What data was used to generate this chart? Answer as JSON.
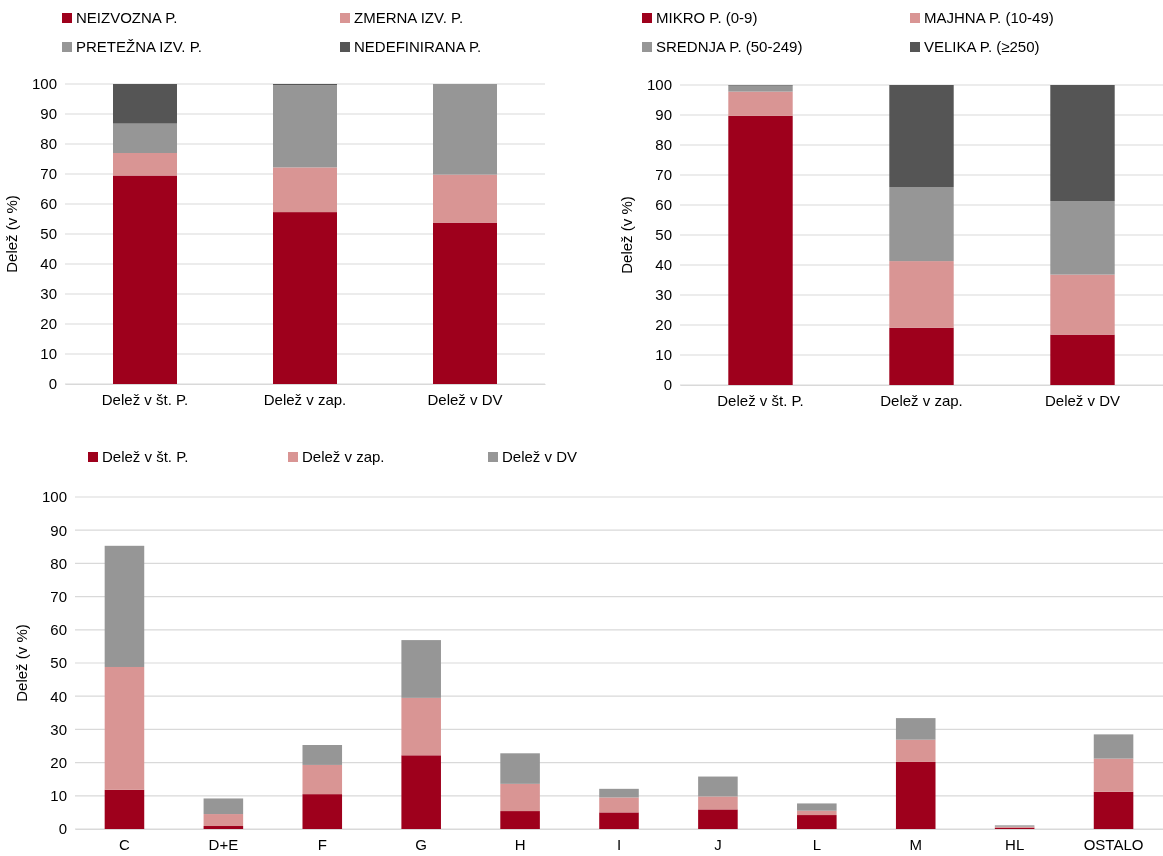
{
  "chart_data": [
    {
      "type": "bar",
      "stacked": true,
      "ylabel": "Delež (v %)",
      "categories": [
        "Delež v št. P.",
        "Delež v zap.",
        "Delež v DV"
      ],
      "ylim": [
        0,
        100
      ],
      "yticks": [
        0,
        10,
        20,
        30,
        40,
        50,
        60,
        70,
        80,
        90,
        100
      ],
      "grid": "y",
      "legend": "top",
      "series": [
        {
          "name": "NEIZVOZNA P.",
          "color": "#9e001c",
          "values": [
            69.5,
            57.3,
            53.8
          ]
        },
        {
          "name": "ZMERNA IZV. P.",
          "color": "#d99594",
          "values": [
            7.5,
            14.9,
            16
          ]
        },
        {
          "name": "PRETEŽNA IZV. P.",
          "color": "#969696",
          "values": [
            9.8,
            27.4,
            30.2
          ]
        },
        {
          "name": "NEDEFINIRANA P.",
          "color": "#555555",
          "values": [
            13.2,
            0.4,
            0
          ]
        }
      ]
    },
    {
      "type": "bar",
      "stacked": true,
      "ylabel": "Delež (v %)",
      "categories": [
        "Delež v št. P.",
        "Delež v zap.",
        "Delež v DV"
      ],
      "ylim": [
        0,
        100
      ],
      "yticks": [
        0,
        10,
        20,
        30,
        40,
        50,
        60,
        70,
        80,
        90,
        100
      ],
      "grid": "y",
      "legend": "top",
      "series": [
        {
          "name": "MIKRO P. (0-9)",
          "color": "#9e001c",
          "values": [
            89.7,
            19.1,
            16.8
          ]
        },
        {
          "name": "MAJHNA P. (10-49)",
          "color": "#d99594",
          "values": [
            8.1,
            22.2,
            20
          ]
        },
        {
          "name": "SREDNJA P. (50-249)",
          "color": "#969696",
          "values": [
            2,
            24.7,
            24.5
          ]
        },
        {
          "name": "VELIKA P. (≥250)",
          "color": "#555555",
          "values": [
            0.2,
            34,
            38.7
          ]
        }
      ]
    },
    {
      "type": "bar",
      "stacked": true,
      "ylabel": "Delež (v %)",
      "categories": [
        "C",
        "D+E",
        "F",
        "G",
        "H",
        "I",
        "J",
        "L",
        "M",
        "HL",
        "OSTALO"
      ],
      "ylim": [
        0,
        100
      ],
      "yticks": [
        0,
        10,
        20,
        30,
        40,
        50,
        60,
        70,
        80,
        90,
        100
      ],
      "grid": "y",
      "legend": "top",
      "series": [
        {
          "name": "Delež v št. P.",
          "color": "#9e001c",
          "values": [
            11.8,
            0.9,
            10.5,
            22.2,
            5.4,
            5.0,
            5.9,
            4.2,
            20.2,
            0.4,
            11.2
          ]
        },
        {
          "name": "Delež v zap.",
          "color": "#d99594",
          "values": [
            37.0,
            3.6,
            8.8,
            17.3,
            8.2,
            4.5,
            3.9,
            1.3,
            6.7,
            0.3,
            10.0
          ]
        },
        {
          "name": "Delež v DV",
          "color": "#969696",
          "values": [
            36.5,
            4.7,
            6.0,
            17.4,
            9.2,
            2.6,
            6.0,
            2.2,
            6.5,
            0.4,
            7.3
          ]
        }
      ]
    }
  ]
}
